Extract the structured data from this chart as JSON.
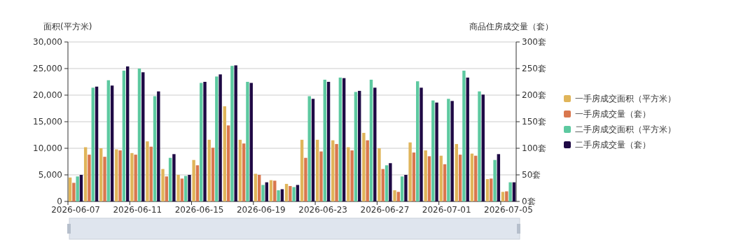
{
  "chart_data": {
    "type": "bar",
    "ylabel": "面积(平方米)",
    "y2label": "商品住房成交量（套）",
    "categories": [
      "2026-06-07",
      null,
      null,
      null,
      "2026-06-11",
      null,
      null,
      null,
      "2026-06-15",
      null,
      null,
      null,
      "2026-06-19",
      null,
      null,
      null,
      "2026-06-23",
      null,
      null,
      null,
      "2026-06-27",
      null,
      null,
      null,
      "2026-07-01",
      null,
      null,
      null,
      "2026-07-05"
    ],
    "ylim": [
      0,
      30000
    ],
    "yticks": [
      {
        "value": 0,
        "label": "0"
      },
      {
        "value": 5000,
        "label": "5,000"
      },
      {
        "value": 10000,
        "label": "10,000"
      },
      {
        "value": 15000,
        "label": "15,000"
      },
      {
        "value": 20000,
        "label": "20,000"
      },
      {
        "value": 25000,
        "label": "25,000"
      },
      {
        "value": 30000,
        "label": "30,000"
      }
    ],
    "y2lim": [
      0,
      300
    ],
    "y2ticks": [
      {
        "value": 0,
        "label": "0套"
      },
      {
        "value": 50,
        "label": "50套"
      },
      {
        "value": 100,
        "label": "100套"
      },
      {
        "value": 150,
        "label": "150套"
      },
      {
        "value": 200,
        "label": "200套"
      },
      {
        "value": 250,
        "label": "250套"
      },
      {
        "value": 300,
        "label": "300套"
      }
    ],
    "grid": "y",
    "legend": "right",
    "series": [
      {
        "name": "一手房成交面积（平方米）",
        "color": "#e0b55a",
        "values": [
          4500,
          10200,
          10000,
          9800,
          9100,
          11300,
          6100,
          5000,
          7800,
          11600,
          17900,
          11600,
          5200,
          4000,
          3300,
          11600,
          11600,
          11500,
          10200,
          12900,
          10000,
          2100,
          11100,
          9600,
          8600,
          10800,
          9000,
          4200,
          1800
        ]
      },
      {
        "name": "一手房成交量（套）",
        "color": "#d9774e",
        "axis": "y2",
        "values": [
          35,
          88,
          84,
          96,
          88,
          103,
          47,
          43,
          68,
          101,
          143,
          109,
          50,
          39,
          29,
          82,
          94,
          108,
          96,
          115,
          61,
          18,
          92,
          85,
          70,
          88,
          86,
          43,
          19
        ]
      },
      {
        "name": "二手房成交面积（平方米）",
        "color": "#5dc9a0",
        "values": [
          4700,
          21400,
          22800,
          24600,
          25000,
          19800,
          8200,
          4800,
          22300,
          23500,
          25500,
          22500,
          3100,
          2100,
          2700,
          19800,
          22900,
          23300,
          20600,
          22900,
          6800,
          4700,
          22600,
          19000,
          19300,
          24600,
          20700,
          7800,
          3600
        ]
      },
      {
        "name": "二手房成交量（套）",
        "color": "#1f0a45",
        "axis": "y2",
        "values": [
          50,
          216,
          218,
          254,
          243,
          207,
          89,
          50,
          225,
          239,
          256,
          223,
          36,
          23,
          31,
          193,
          225,
          232,
          208,
          214,
          72,
          50,
          214,
          186,
          189,
          233,
          201,
          89,
          36
        ]
      }
    ]
  }
}
